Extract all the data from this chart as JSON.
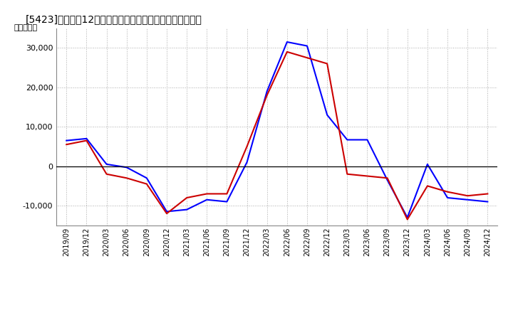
{
  "title": "[5423]　利益の12か月移動合計の対前年同期増減額の推移",
  "ylabel": "（百万円）",
  "background_color": "#ffffff",
  "plot_background": "#ffffff",
  "grid_color": "#aaaaaa",
  "line_color_blue": "#0000ff",
  "line_color_red": "#cc0000",
  "ylim": [
    -15000,
    35000
  ],
  "yticks": [
    -10000,
    0,
    10000,
    20000,
    30000
  ],
  "x_labels": [
    "2019/09",
    "2019/12",
    "2020/03",
    "2020/06",
    "2020/09",
    "2020/12",
    "2021/03",
    "2021/06",
    "2021/09",
    "2021/12",
    "2022/03",
    "2022/06",
    "2022/09",
    "2022/12",
    "2023/03",
    "2023/06",
    "2023/09",
    "2023/12",
    "2024/03",
    "2024/06",
    "2024/09",
    "2024/12"
  ],
  "blue_values": [
    6500,
    7000,
    500,
    -300,
    -3000,
    -11500,
    -11000,
    -8500,
    -9000,
    1000,
    19000,
    31500,
    30500,
    13000,
    6700,
    6700,
    -3500,
    -13000,
    500,
    -8000,
    -8500,
    -9000
  ],
  "red_values": [
    5500,
    6500,
    -2000,
    -3000,
    -4500,
    -12000,
    -8000,
    -7000,
    -7000,
    5000,
    18000,
    29000,
    27500,
    26000,
    -2000,
    -2500,
    -3000,
    -13500,
    -5000,
    -6500,
    -7500,
    -7000
  ],
  "linewidth": 1.5
}
